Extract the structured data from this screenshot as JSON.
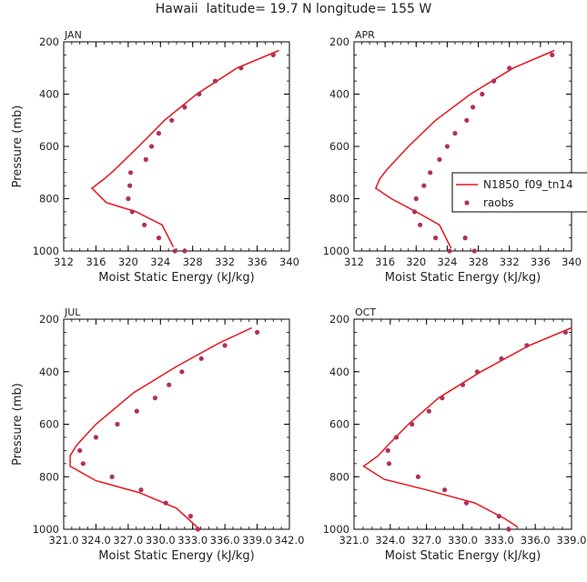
{
  "title": "Hawaii  latitude= 19.7 N longitude= 155 W",
  "colors": {
    "model_line": "#e8141b",
    "obs_marker": "#b0305a",
    "axis": "#000000"
  },
  "legend": {
    "model_label": "N1850_f09_tn14",
    "obs_label": "raobs"
  },
  "chart_data": [
    {
      "type": "line",
      "panel": "JAN",
      "xlabel": "Moist Static Energy (kJ/kg)",
      "ylabel": "Pressure (mb)",
      "xlim": [
        312,
        340
      ],
      "ylim": [
        1000,
        200
      ],
      "xticks": [
        312,
        316,
        320,
        324,
        328,
        332,
        336,
        340
      ],
      "xtick_labels": [
        "312",
        "316",
        "320",
        "324",
        "328",
        "332",
        "336",
        "340"
      ],
      "yticks": [
        200,
        400,
        600,
        800,
        1000
      ],
      "series": [
        {
          "name": "N1850_f09_tn14",
          "kind": "line",
          "x": [
            338.7,
            333.5,
            328.5,
            324.5,
            321.3,
            318.3,
            317.0,
            315.5,
            317.3,
            321.0,
            324.2,
            325.6
          ],
          "y": [
            233,
            300,
            400,
            500,
            600,
            690,
            725,
            760,
            815,
            850,
            900,
            985
          ]
        },
        {
          "name": "raobs",
          "kind": "scatter",
          "x": [
            338.0,
            334.0,
            330.8,
            328.8,
            327.0,
            325.4,
            323.8,
            322.9,
            322.2,
            320.3,
            320.2,
            320.0,
            320.5,
            322.0,
            323.8,
            325.8,
            327.0
          ],
          "y": [
            250,
            300,
            350,
            400,
            450,
            500,
            550,
            600,
            650,
            700,
            750,
            800,
            850,
            900,
            950,
            1000,
            1000
          ]
        }
      ]
    },
    {
      "type": "line",
      "panel": "APR",
      "xlabel": "Moist Static Energy (kJ/kg)",
      "ylabel": "",
      "xlim": [
        312,
        340
      ],
      "ylim": [
        1000,
        200
      ],
      "xticks": [
        312,
        316,
        320,
        324,
        328,
        332,
        336,
        340
      ],
      "xtick_labels": [
        "312",
        "316",
        "320",
        "324",
        "328",
        "332",
        "336",
        "340"
      ],
      "yticks": [
        200,
        400,
        600,
        800,
        1000
      ],
      "series": [
        {
          "name": "N1850_f09_tn14",
          "kind": "line",
          "x": [
            337.8,
            332.5,
            327.0,
            322.5,
            319.0,
            316.2,
            315.3,
            314.8,
            316.8,
            320.0,
            323.0,
            324.5
          ],
          "y": [
            233,
            300,
            400,
            500,
            600,
            690,
            725,
            760,
            800,
            850,
            900,
            990
          ]
        },
        {
          "name": "raobs",
          "kind": "scatter",
          "x": [
            337.5,
            332.0,
            330.0,
            328.5,
            327.3,
            326.5,
            325.0,
            324.0,
            323.0,
            321.8,
            321.0,
            320.0,
            319.8,
            320.5,
            322.5,
            324.3,
            326.3,
            327.5
          ],
          "y": [
            250,
            300,
            350,
            400,
            450,
            500,
            550,
            600,
            650,
            700,
            750,
            800,
            850,
            900,
            950,
            1000,
            950,
            1000
          ]
        }
      ]
    },
    {
      "type": "line",
      "panel": "JUL",
      "xlabel": "Moist Static Energy (kJ/kg)",
      "ylabel": "Pressure (mb)",
      "xlim": [
        321,
        342
      ],
      "ylim": [
        1000,
        200
      ],
      "xticks": [
        321,
        324,
        327,
        330,
        333,
        336,
        339,
        342
      ],
      "xtick_labels": [
        "321.0",
        "324.0",
        "327.0",
        "330.0",
        "333.0",
        "336.0",
        "339.0",
        "342.0"
      ],
      "yticks": [
        200,
        400,
        600,
        800,
        1000
      ],
      "series": [
        {
          "name": "N1850_f09_tn14",
          "kind": "line",
          "x": [
            338.5,
            335.5,
            331.5,
            327.5,
            324.0,
            322.2,
            321.6,
            321.6,
            324.0,
            328.0,
            331.5,
            333.5
          ],
          "y": [
            233,
            290,
            380,
            480,
            600,
            680,
            720,
            760,
            815,
            860,
            920,
            995
          ]
        },
        {
          "name": "raobs",
          "kind": "scatter",
          "x": [
            339.0,
            336.0,
            333.8,
            332.0,
            330.8,
            329.5,
            327.8,
            326.0,
            324.0,
            322.5,
            322.8,
            325.5,
            328.2,
            330.5,
            332.8,
            333.5
          ],
          "y": [
            250,
            300,
            350,
            400,
            450,
            500,
            550,
            600,
            650,
            700,
            750,
            800,
            850,
            900,
            950,
            1000
          ]
        }
      ]
    },
    {
      "type": "line",
      "panel": "OCT",
      "xlabel": "Moist Static Energy (kJ/kg)",
      "ylabel": "",
      "xlim": [
        321,
        339
      ],
      "ylim": [
        1000,
        200
      ],
      "xticks": [
        321,
        324,
        327,
        330,
        333,
        336,
        339
      ],
      "xtick_labels": [
        "321.0",
        "324.0",
        "327.0",
        "330.0",
        "333.0",
        "336.0",
        "339.0"
      ],
      "yticks": [
        200,
        400,
        600,
        800,
        1000
      ],
      "series": [
        {
          "name": "N1850_f09_tn14",
          "kind": "line",
          "x": [
            339.0,
            335.5,
            331.5,
            328.0,
            325.5,
            323.8,
            323.0,
            321.8,
            323.5,
            327.0,
            331.0,
            333.5,
            334.5
          ],
          "y": [
            233,
            300,
            400,
            500,
            600,
            680,
            720,
            760,
            810,
            850,
            900,
            960,
            990
          ]
        },
        {
          "name": "raobs",
          "kind": "scatter",
          "x": [
            338.5,
            335.3,
            333.2,
            331.2,
            330.0,
            328.3,
            327.2,
            325.8,
            324.5,
            323.8,
            323.9,
            326.3,
            328.5,
            330.3,
            333.0,
            333.8
          ],
          "y": [
            250,
            300,
            350,
            400,
            450,
            500,
            550,
            600,
            650,
            700,
            750,
            800,
            850,
            900,
            950,
            1000
          ]
        }
      ]
    }
  ]
}
